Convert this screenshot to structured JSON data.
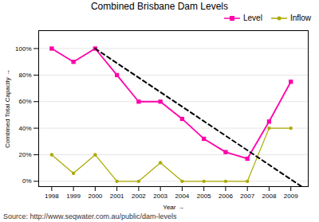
{
  "chart_data": {
    "type": "line",
    "title": "Combined Brisbane Dam Levels",
    "xlabel": "Year",
    "ylabel": "Combined Total Capacity",
    "caption": "Source: http://www.seqwater.com.au/public/dam-levels",
    "x": [
      1998,
      1999,
      2000,
      2001,
      2002,
      2003,
      2004,
      2005,
      2006,
      2007,
      2008,
      2009
    ],
    "series": [
      {
        "name": "Level",
        "color": "#FF00AA",
        "marker": "square",
        "line_style": "solid",
        "values": [
          1.0,
          0.9,
          1.0,
          0.8,
          0.6,
          0.6,
          0.47,
          0.32,
          0.22,
          0.17,
          0.45,
          0.75
        ]
      },
      {
        "name": "Inflow",
        "color": "#AAAA00",
        "marker": "circle",
        "line_style": "solid",
        "values": [
          0.2,
          0.06,
          0.2,
          0.0,
          0.0,
          0.14,
          0.0,
          0.0,
          0.0,
          0.0,
          0.4,
          0.4
        ]
      },
      {
        "color": "#000000",
        "line_style": "dashed",
        "x": [
          2000,
          2009.5
        ],
        "values": [
          1.0,
          -0.04
        ]
      }
    ],
    "xlim": [
      1997.4,
      2009.8
    ],
    "xticks": [
      1998,
      1999,
      2000,
      2001,
      2002,
      2003,
      2004,
      2005,
      2006,
      2007,
      2008,
      2009
    ],
    "ylim": [
      -0.04,
      1.135
    ],
    "yticks": [
      {
        "value": 0.0,
        "label": "0%"
      },
      {
        "value": 0.2,
        "label": "20%"
      },
      {
        "value": 0.4,
        "label": "40%"
      },
      {
        "value": 0.6,
        "label": "60%"
      },
      {
        "value": 0.8,
        "label": "80%"
      },
      {
        "value": 1.0,
        "label": "100%"
      }
    ],
    "grid": true,
    "legend": "upper right"
  }
}
